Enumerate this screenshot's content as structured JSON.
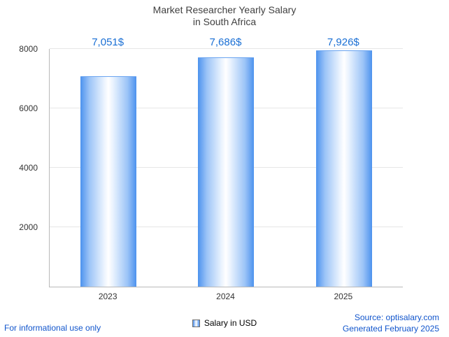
{
  "title": {
    "line1": "Market Researcher Yearly Salary",
    "line2": "in South Africa"
  },
  "chart_data": {
    "type": "bar",
    "categories": [
      "2023",
      "2024",
      "2025"
    ],
    "values": [
      7051,
      7686,
      7926
    ],
    "value_labels": [
      "7,051$",
      "7,686$",
      "7,926$"
    ],
    "title": "Market Researcher Yearly Salary in South Africa",
    "xlabel": "",
    "ylabel": "",
    "ylim": [
      0,
      8000
    ],
    "yticks": [
      "2000",
      "4000",
      "6000",
      "8000"
    ],
    "grid": true,
    "legend_position": "bottom",
    "legend": [
      "Salary in USD"
    ],
    "bar_accent_color": "#4d92ee",
    "value_label_color": "#1a6fd4"
  },
  "legend": {
    "label": "Salary in USD"
  },
  "footer": {
    "left": "For informational use only",
    "source": "Source: optisalary.com",
    "generated": "Generated February 2025"
  }
}
